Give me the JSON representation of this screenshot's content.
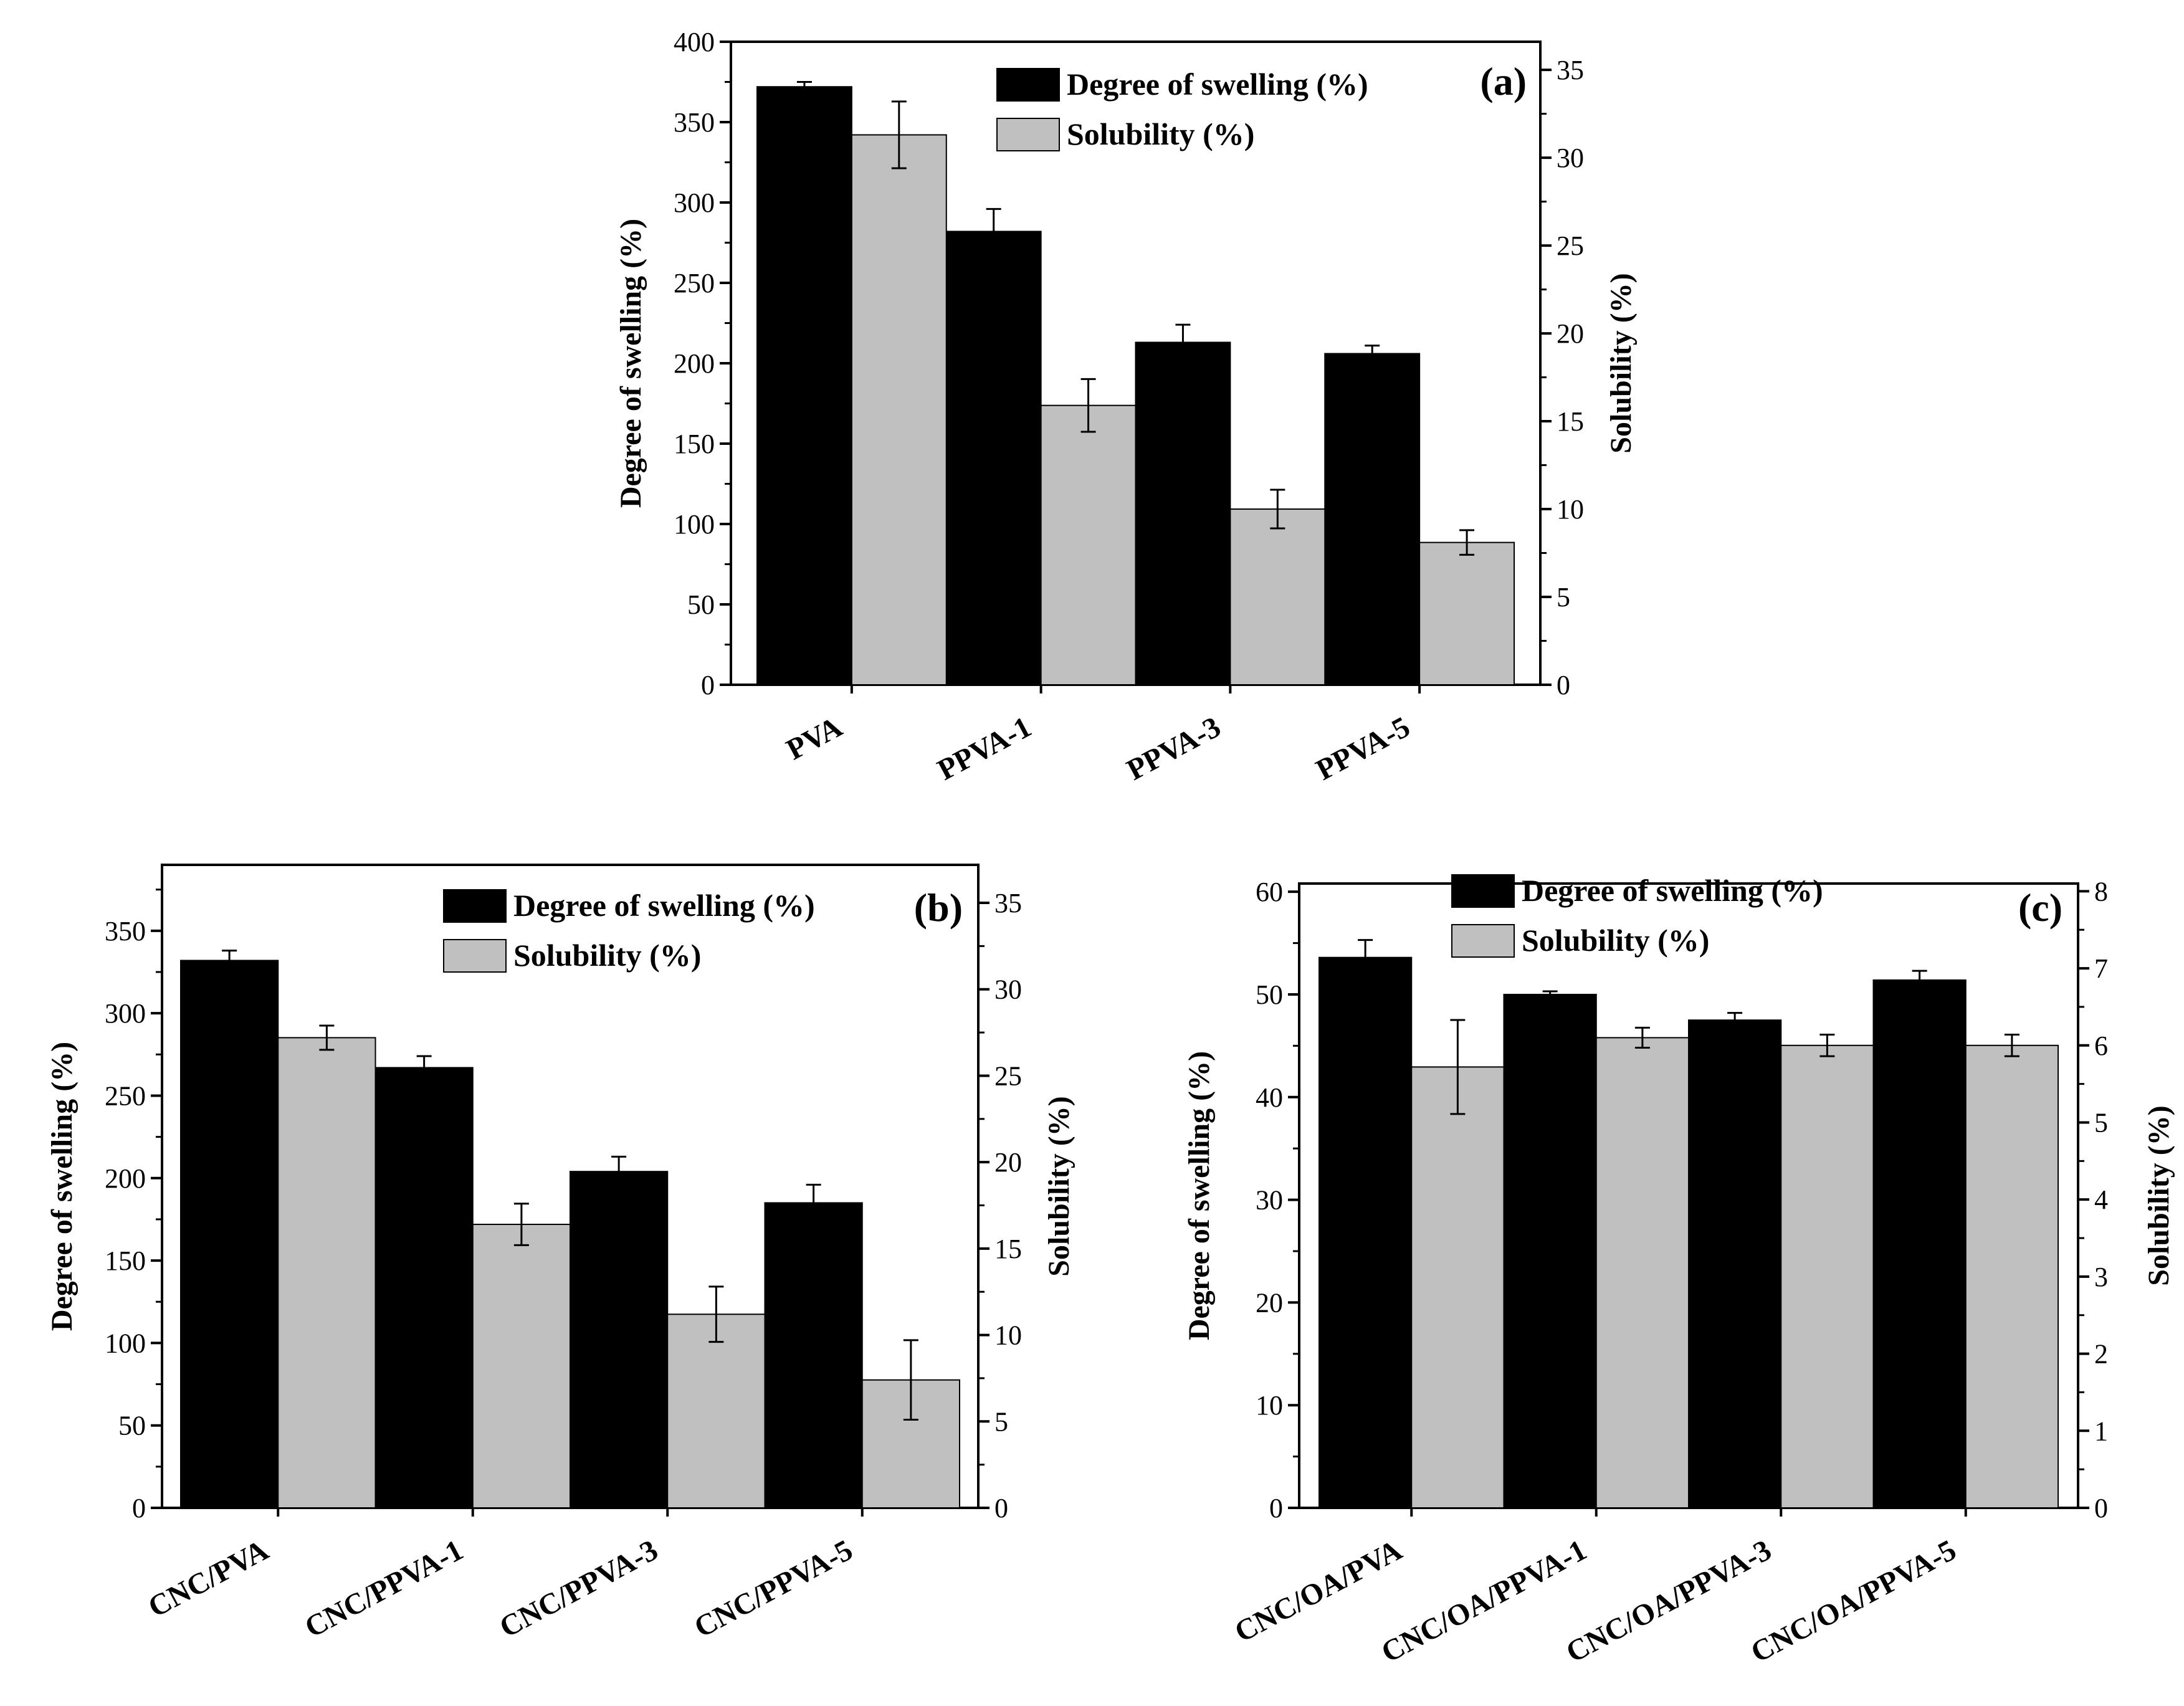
{
  "colors": {
    "swelling": "#000000",
    "solubility": "#c0c0c0",
    "axis": "#000000"
  },
  "chart_data": [
    {
      "type": "bar",
      "panel": "(a)",
      "categories": [
        "PVA",
        "PPVA-1",
        "PPVA-3",
        "PPVA-5"
      ],
      "legend": [
        "Degree of swelling (%)",
        "Solubility (%)"
      ],
      "ylabel": "Degree of swelling (%)",
      "ylabel_right": "Solubility (%)",
      "ylim": [
        0,
        400
      ],
      "yticks": [
        0,
        50,
        100,
        150,
        200,
        250,
        300,
        350,
        400
      ],
      "ylim_right": [
        0,
        36.6
      ],
      "yticks_right": [
        0,
        5,
        10,
        15,
        20,
        25,
        30,
        35
      ],
      "series": [
        {
          "name": "Degree of swelling (%)",
          "axis": "left",
          "values": [
            372,
            282,
            213,
            206
          ],
          "errors": [
            3,
            14,
            11,
            5
          ]
        },
        {
          "name": "Solubility (%)",
          "axis": "right",
          "values": [
            31.3,
            15.9,
            10.0,
            8.1
          ],
          "errors": [
            1.9,
            1.5,
            1.1,
            0.7
          ]
        }
      ]
    },
    {
      "type": "bar",
      "panel": "(b)",
      "categories": [
        "CNC/PVA",
        "CNC/PPVA-1",
        "CNC/PPVA-3",
        "CNC/PPVA-5"
      ],
      "legend": [
        "Degree of swelling (%)",
        "Solubility (%)"
      ],
      "ylabel": "Degree of swelling (%)",
      "ylabel_right": "Solubility (%)",
      "ylim": [
        0,
        390
      ],
      "yticks": [
        0,
        50,
        100,
        150,
        200,
        250,
        300,
        350
      ],
      "ylim_right": [
        0,
        37.2
      ],
      "yticks_right": [
        0,
        5,
        10,
        15,
        20,
        25,
        30,
        35
      ],
      "series": [
        {
          "name": "Degree of swelling (%)",
          "axis": "left",
          "values": [
            332,
            267,
            204,
            185
          ],
          "errors": [
            6,
            7,
            9,
            11
          ]
        },
        {
          "name": "Solubility (%)",
          "axis": "right",
          "values": [
            27.2,
            16.4,
            11.2,
            7.4
          ],
          "errors": [
            0.7,
            1.2,
            1.6,
            2.3
          ]
        }
      ]
    },
    {
      "type": "bar",
      "panel": "(c)",
      "categories": [
        "CNC/OA/PVA",
        "CNC/OA/PPVA-1",
        "CNC/OA/PPVA-3",
        "CNC/OA/PPVA-5"
      ],
      "legend": [
        "Degree of swelling (%)",
        "Solubility (%)"
      ],
      "ylabel": "Degree of swelling (%)",
      "ylabel_right": "Solubility (%)",
      "ylim": [
        0,
        60.8
      ],
      "yticks": [
        0,
        10,
        20,
        30,
        40,
        50,
        60
      ],
      "ylim_right": [
        0,
        8.1
      ],
      "yticks_right": [
        0,
        1,
        2,
        3,
        4,
        5,
        6,
        7,
        8
      ],
      "series": [
        {
          "name": "Degree of swelling (%)",
          "axis": "left",
          "values": [
            53.6,
            50.0,
            47.5,
            51.4
          ],
          "errors": [
            1.7,
            0.3,
            0.7,
            0.9
          ]
        },
        {
          "name": "Solubility (%)",
          "axis": "right",
          "values": [
            5.72,
            6.1,
            6.0,
            6.0
          ],
          "errors": [
            0.61,
            0.13,
            0.14,
            0.14
          ]
        }
      ]
    }
  ]
}
